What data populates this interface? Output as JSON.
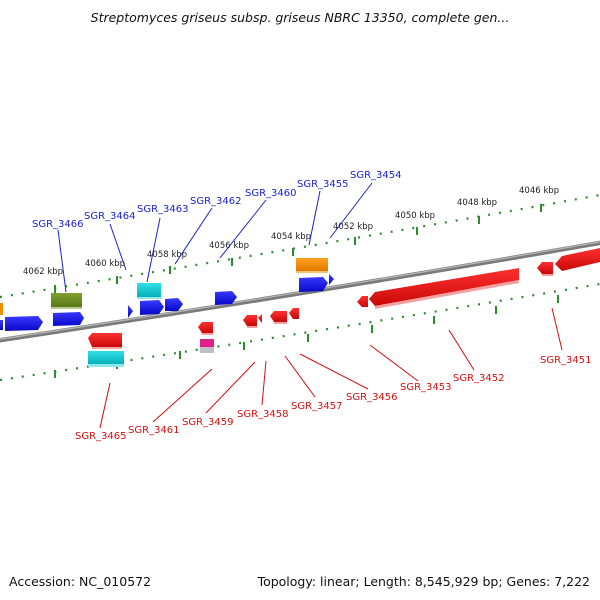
{
  "title": "Streptomyces griseus subsp. griseus NBRC 13350, complete gen...",
  "footer": {
    "accession": "Accession: NC_010572",
    "summary": "Topology: linear; Length: 8,545,929 bp; Genes: 7,222"
  },
  "colors": {
    "backbone": "#7a7a7a",
    "ticks": "#2d8a2d",
    "top_labels": "#1b22c8",
    "bottom_labels": "#d01010",
    "forward_gene": "#1010e0",
    "reverse_gene": "#e81010",
    "rna_orange": "#f08c00",
    "rna_olive": "#6a8a20",
    "rna_cyan": "#12c8d0",
    "rna_magenta": "#e0208a"
  },
  "scale_labels": [
    "4062 kbp",
    "4060 kbp",
    "4058 kbp",
    "4056 kbp",
    "4054 kbp",
    "4052 kbp",
    "4050 kbp",
    "4048 kbp",
    "4046 kbp"
  ],
  "top_gene_labels": [
    "SGR_3466",
    "SGR_3464",
    "SGR_3463",
    "SGR_3462",
    "SGR_3460",
    "SGR_3455",
    "SGR_3454"
  ],
  "bottom_gene_labels": [
    "SGR_3465",
    "SGR_3461",
    "SGR_3459",
    "SGR_3458",
    "SGR_3457",
    "SGR_3456",
    "SGR_3453",
    "SGR_3452",
    "SGR_3451"
  ]
}
